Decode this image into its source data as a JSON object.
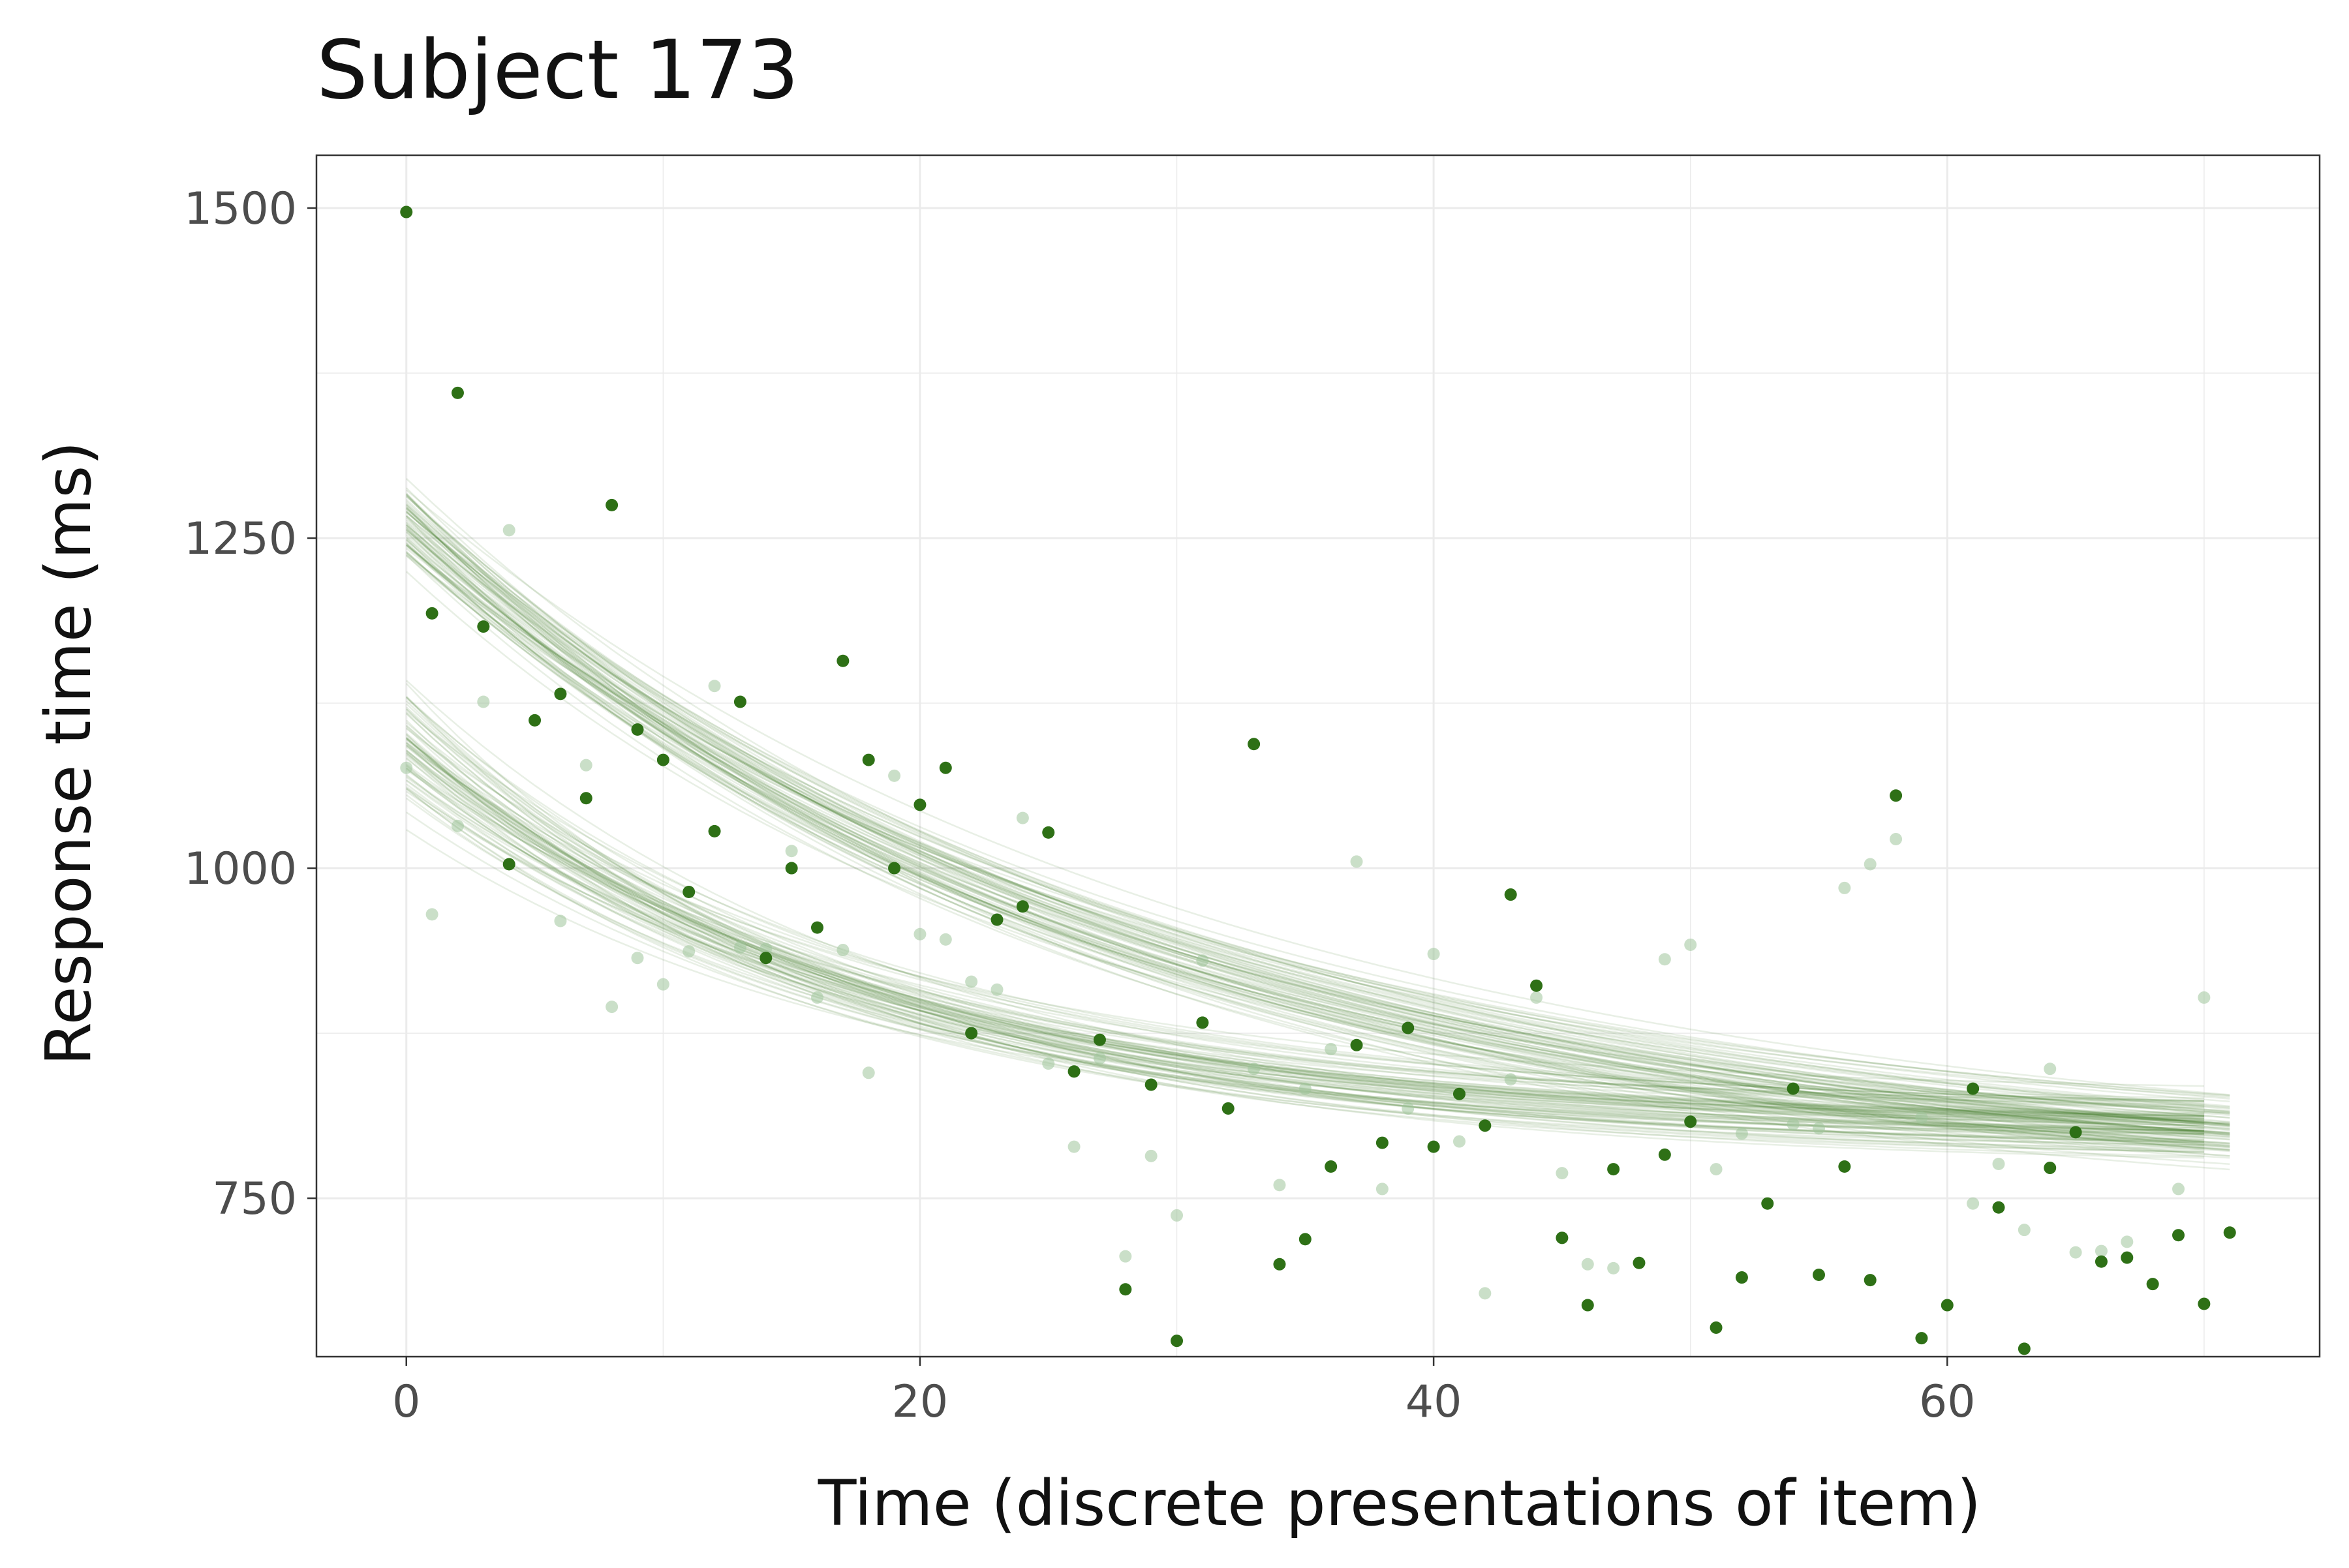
{
  "chart_data": {
    "type": "scatter",
    "title": "Subject 173",
    "xlabel": "Time (discrete presentations of item)",
    "ylabel": "Response time (ms)",
    "xlim": [
      -3.5,
      74.5
    ],
    "ylim": [
      630,
      1540
    ],
    "x_ticks": [
      0,
      20,
      40,
      60
    ],
    "y_ticks": [
      750,
      1000,
      1250,
      1500
    ],
    "x_tick_labels": [
      "0",
      "20",
      "40",
      "60"
    ],
    "y_tick_labels": [
      "750",
      "1000",
      "1250",
      "1500"
    ],
    "grid": true,
    "legend": "none",
    "colors": {
      "point": "#2e7016",
      "point_faded": "#9fc49a",
      "curve": "#2e7016",
      "grid": "#ebebeb",
      "panel_border": "#333333"
    },
    "series": [
      {
        "x": [
          0,
          1,
          2,
          3,
          4,
          5,
          6,
          7,
          8,
          9,
          10,
          11,
          12,
          13,
          14,
          15,
          16,
          17,
          18,
          19,
          20,
          21,
          22,
          23,
          24,
          25,
          26,
          27,
          28,
          29,
          30,
          31,
          32,
          33,
          34,
          35,
          36,
          37,
          38,
          39,
          40,
          41,
          42,
          43,
          44,
          45,
          46,
          47,
          48,
          49,
          50,
          51,
          52,
          53,
          54,
          55,
          56,
          57,
          58,
          59,
          60,
          61,
          62,
          63,
          64,
          65,
          66,
          67,
          68,
          69,
          70,
          71
        ],
        "y": [
          1497,
          1193,
          1360,
          1183,
          1003,
          1112,
          1132,
          1053,
          1275,
          1105,
          1082,
          982,
          1028,
          1126,
          932,
          1000,
          955,
          1157,
          1082,
          1000,
          1048,
          1076,
          875,
          961,
          971,
          1027,
          846,
          870,
          681,
          836,
          642,
          883,
          818,
          1094,
          700,
          719,
          774,
          866,
          792,
          879,
          789,
          829,
          805,
          980,
          911,
          720,
          669,
          772,
          701,
          783,
          808,
          652,
          690,
          746,
          833,
          692,
          774,
          688,
          1055,
          644,
          669,
          833,
          743,
          636,
          773,
          800,
          702,
          705,
          685,
          722,
          670,
          724
        ]
      },
      {
        "x": [
          0,
          1,
          2,
          3,
          4,
          6,
          7,
          8,
          9,
          10,
          11,
          12,
          13,
          14,
          15,
          16,
          17,
          18,
          19,
          20,
          21,
          22,
          23,
          24,
          25,
          26,
          27,
          28,
          29,
          30,
          31,
          33,
          34,
          35,
          36,
          37,
          38,
          39,
          40,
          41,
          42,
          43,
          44,
          45,
          46,
          47,
          49,
          50,
          51,
          52,
          54,
          55,
          56,
          57,
          58,
          59,
          61,
          62,
          63,
          64,
          65,
          66,
          67,
          69,
          70
        ],
        "y": [
          1076,
          965,
          1032,
          1126,
          1256,
          960,
          1078,
          895,
          932,
          912,
          937,
          1138,
          940,
          939,
          1013,
          902,
          938,
          845,
          1070,
          950,
          946,
          914,
          908,
          1038,
          852,
          789,
          856,
          706,
          782,
          737,
          930,
          848,
          760,
          833,
          863,
          1005,
          757,
          818,
          935,
          793,
          678,
          840,
          902,
          769,
          700,
          697,
          931,
          942,
          772,
          799,
          806,
          803,
          985,
          1003,
          1022,
          811,
          746,
          776,
          726,
          848,
          709,
          710,
          717,
          757,
          902
        ]
      }
    ],
    "curves": [
      {
        "group": "upper",
        "n": 70,
        "y0": 1260,
        "y0_spread": 34,
        "asym": 760,
        "asym_spread": 28,
        "rate": 0.036,
        "rate_spread": 0.004,
        "x_max": 71
      },
      {
        "group": "lower",
        "n": 70,
        "y0": 1090,
        "y0_spread": 40,
        "asym": 800,
        "asym_spread": 22,
        "rate": 0.056,
        "rate_spread": 0.005,
        "x_max": 70
      }
    ]
  }
}
